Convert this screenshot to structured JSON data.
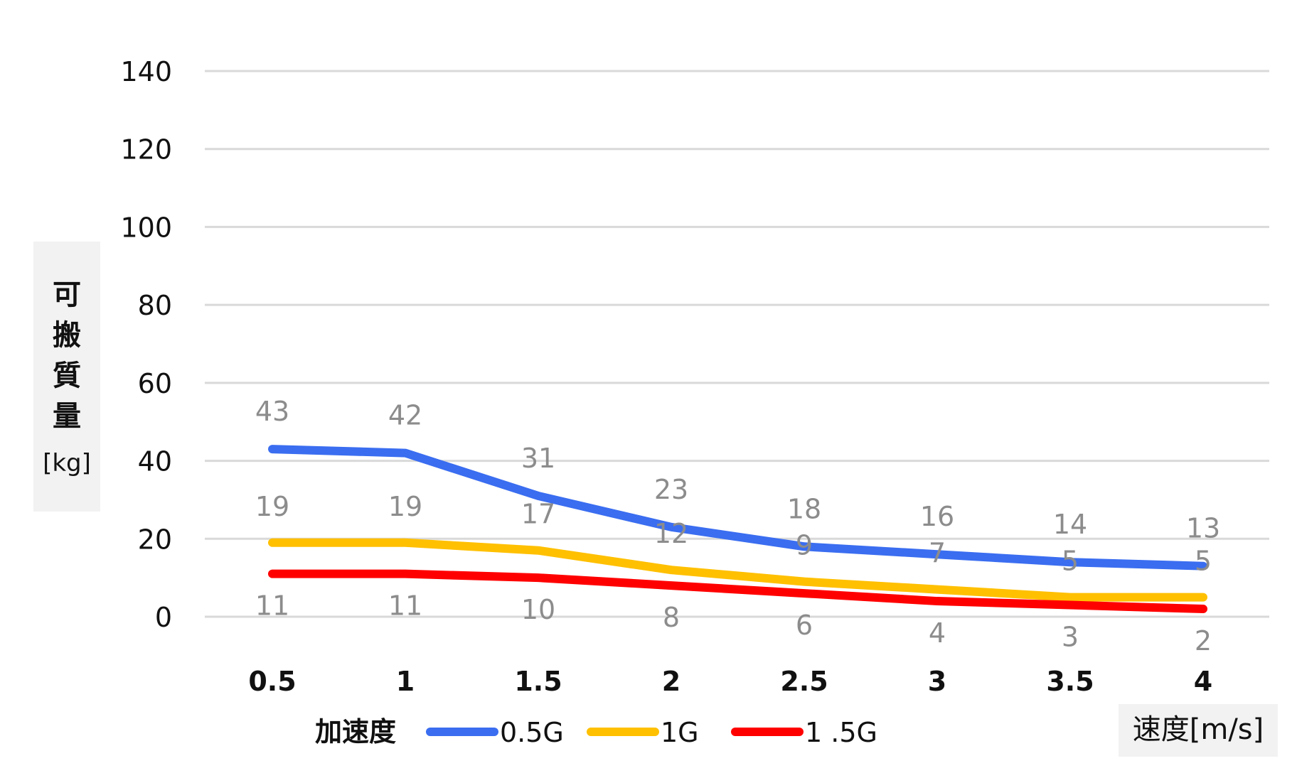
{
  "chart_data": {
    "type": "line",
    "x": [
      0.5,
      1,
      1.5,
      2,
      2.5,
      3,
      3.5,
      4
    ],
    "x_tick_labels": [
      "0.5",
      "1",
      "1.5",
      "2",
      "2.5",
      "3",
      "3.5",
      "4"
    ],
    "ylim": [
      0,
      140
    ],
    "y_ticks": [
      0,
      20,
      40,
      60,
      80,
      100,
      120,
      140
    ],
    "ylabel_chars": [
      "可",
      "搬",
      "質",
      "量"
    ],
    "ylabel_unit": "[kg]",
    "xlabel": "速度[m/s]",
    "legend_title": "加速度",
    "legend_position": "bottom",
    "grid": true,
    "series": [
      {
        "name": "0.5G",
        "color": "#3a6df0",
        "values": [
          43,
          42,
          31,
          23,
          18,
          16,
          14,
          13
        ]
      },
      {
        "name": "1G",
        "color": "#ffc000",
        "values": [
          19,
          19,
          17,
          12,
          9,
          7,
          5,
          5
        ]
      },
      {
        "name": "1 .5G",
        "color": "#ff0000",
        "values": [
          11,
          11,
          10,
          8,
          6,
          4,
          3,
          2
        ]
      }
    ]
  }
}
